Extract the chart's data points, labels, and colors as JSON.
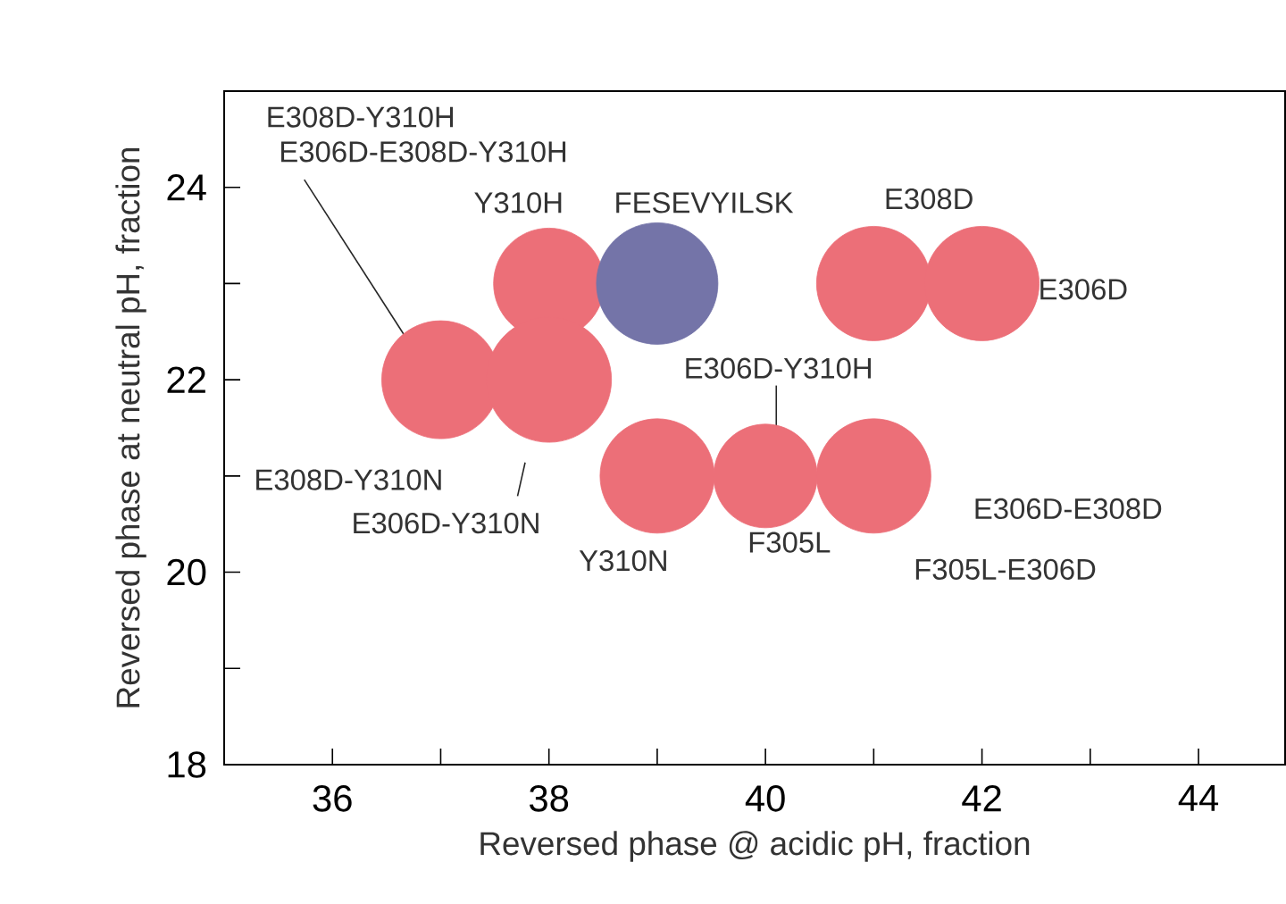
{
  "chart_data": {
    "type": "scatter",
    "xlabel": "Reversed phase @ acidic pH, fraction",
    "ylabel": "Reversed phase at neutral pH, fraction",
    "x": [
      37,
      38,
      38,
      39,
      41,
      42,
      39,
      40,
      41
    ],
    "values": [
      22,
      23,
      22,
      23,
      23,
      23,
      21,
      21,
      21
    ],
    "colors": [
      "#ec6f78",
      "#ec6f78",
      "#ec6f78",
      "#7474a8",
      "#ec6f78",
      "#ec6f78",
      "#ec6f78",
      "#ec6f78",
      "#ec6f78"
    ],
    "marker": "circle",
    "xlim": [
      35,
      44.8
    ],
    "ylim": [
      18,
      25
    ],
    "xticks": [
      36,
      {
        "value": 37,
        "label": null
      },
      38,
      {
        "value": 39,
        "label": null
      },
      40,
      {
        "value": 41,
        "label": null
      },
      42,
      {
        "value": 43,
        "label": null
      },
      44
    ],
    "yticks": [
      18,
      {
        "value": 19,
        "label": null
      },
      20,
      {
        "value": 21,
        "label": null
      },
      22,
      {
        "value": 23,
        "label": null
      },
      24
    ],
    "annotations": [
      "E308D-Y310H",
      {
        "text": "E306D-E308D-Y310H",
        "x": 36.7,
        "y": 22.4
      },
      "E308D-Y310N",
      {
        "text": "Y310H",
        "x": 38,
        "y": 23
      },
      "E306D-Y310N",
      {
        "text": "FESEVYILSK",
        "x": 39,
        "y": 23
      },
      {
        "text": "E308D",
        "x": 41,
        "y": 23
      },
      {
        "text": "E306D",
        "x": 42,
        "y": 23
      },
      {
        "text": "E306D-Y310H",
        "x": 40.1,
        "y": 21.5
      },
      {
        "text": "Y310N",
        "x": 39,
        "y": 21
      },
      {
        "text": "F305L",
        "x": 40,
        "y": 21
      },
      "E306D-E308D",
      "F305L-E306D"
    ]
  }
}
